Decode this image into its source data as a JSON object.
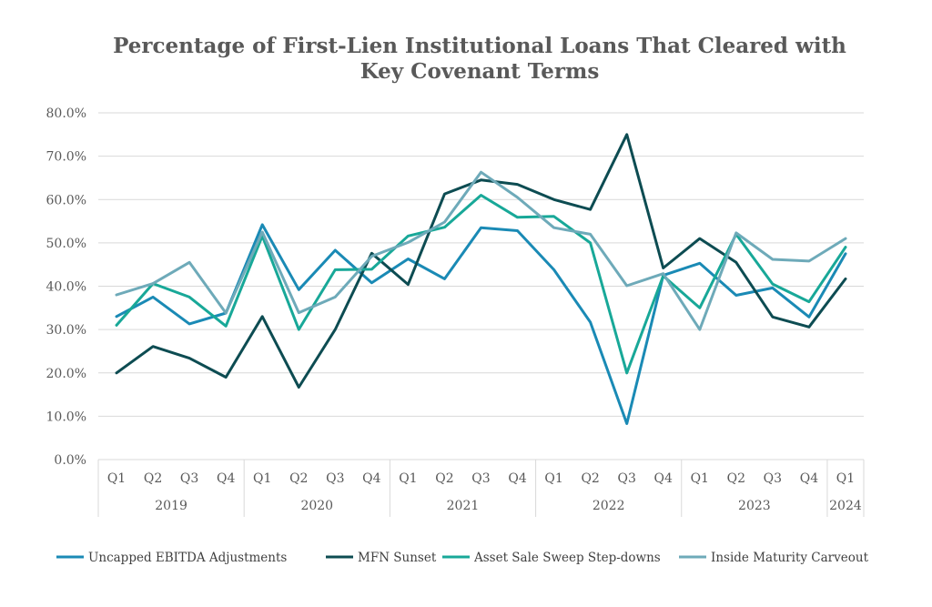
{
  "chart_data": {
    "type": "line",
    "title_lines": [
      "Percentage of First-Lien Institutional Loans That Cleared with",
      "Key Covenant Terms"
    ],
    "ylim": [
      0,
      80
    ],
    "y_ticks": [
      0,
      10,
      20,
      30,
      40,
      50,
      60,
      70,
      80
    ],
    "y_tick_labels": [
      "0.0%",
      "10.0%",
      "20.0%",
      "30.0%",
      "40.0%",
      "50.0%",
      "60.0%",
      "70.0%",
      "80.0%"
    ],
    "grid": true,
    "legend_position": "bottom",
    "categories": [
      "Q1",
      "Q2",
      "Q3",
      "Q4",
      "Q1",
      "Q2",
      "Q3",
      "Q4",
      "Q1",
      "Q2",
      "Q3",
      "Q4",
      "Q1",
      "Q2",
      "Q3",
      "Q4",
      "Q1",
      "Q2",
      "Q3",
      "Q4",
      "Q1"
    ],
    "years": [
      {
        "label": "2019",
        "span": 4
      },
      {
        "label": "2020",
        "span": 4
      },
      {
        "label": "2021",
        "span": 4
      },
      {
        "label": "2022",
        "span": 4
      },
      {
        "label": "2023",
        "span": 4
      },
      {
        "label": "2024",
        "span": 1
      }
    ],
    "series": [
      {
        "name": "Uncapped EBITDA Adjustments",
        "color": "#1a8ab5",
        "values": [
          33.0,
          37.5,
          31.3,
          33.8,
          54.2,
          39.2,
          48.3,
          40.8,
          46.3,
          41.7,
          53.5,
          52.8,
          43.8,
          31.7,
          8.3,
          42.5,
          45.3,
          37.9,
          39.6,
          32.9,
          47.5
        ]
      },
      {
        "name": "MFN Sunset",
        "color": "#0d4c52",
        "values": [
          20.0,
          26.1,
          23.4,
          19.0,
          33.0,
          16.7,
          30.0,
          47.6,
          40.4,
          61.3,
          64.5,
          63.5,
          60.0,
          57.7,
          75.0,
          44.2,
          51.0,
          45.5,
          32.9,
          30.6,
          41.7
        ]
      },
      {
        "name": "Asset Sale Sweep Step-downs",
        "color": "#18a898",
        "values": [
          31.0,
          40.6,
          37.5,
          30.8,
          51.6,
          30.0,
          43.8,
          43.9,
          51.6,
          53.6,
          61.0,
          55.9,
          56.1,
          50.0,
          20.0,
          42.4,
          35.0,
          52.0,
          40.5,
          36.4,
          49.0
        ]
      },
      {
        "name": "Inside Maturity Carveout",
        "color": "#6eaab9",
        "values": [
          38.0,
          40.6,
          45.5,
          33.8,
          52.5,
          33.9,
          37.5,
          46.9,
          50.1,
          54.8,
          66.3,
          60.5,
          53.5,
          52.0,
          40.1,
          42.9,
          30.0,
          52.3,
          46.2,
          45.8,
          51.0
        ]
      }
    ]
  }
}
